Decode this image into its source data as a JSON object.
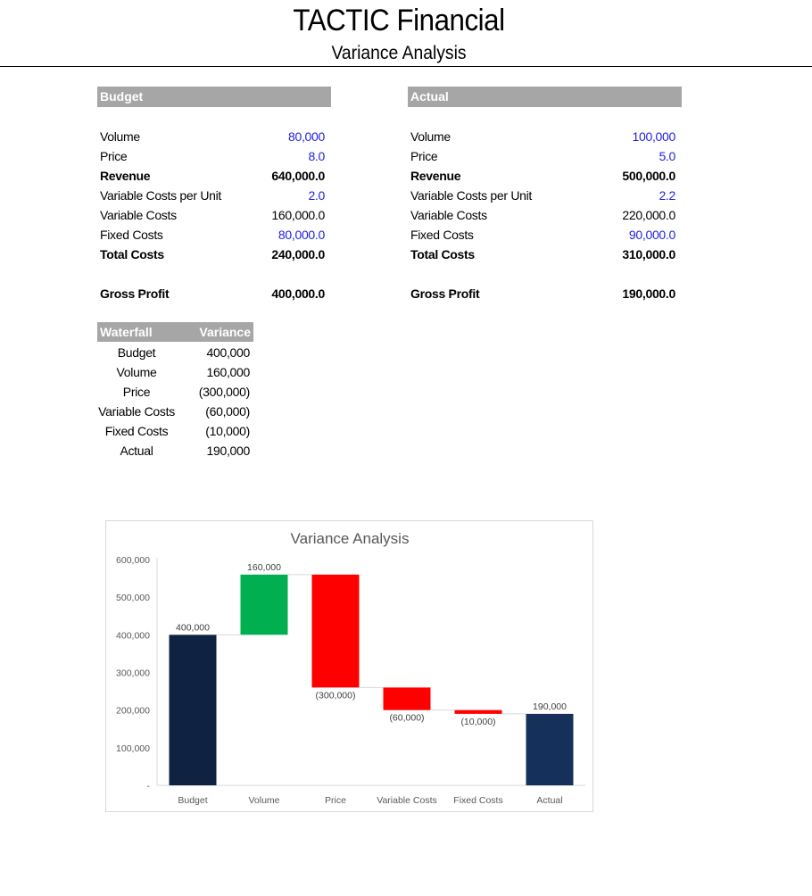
{
  "header": {
    "title": "TACTIC Financial",
    "subtitle": "Variance Analysis"
  },
  "budget": {
    "heading": "Budget",
    "rows": [
      {
        "label": "Volume",
        "value": "80,000",
        "style": "input"
      },
      {
        "label": "Price",
        "value": "8.0",
        "style": "input"
      },
      {
        "label": "Revenue",
        "value": "640,000.0",
        "style": "bold"
      },
      {
        "label": "Variable Costs per Unit",
        "value": "2.0",
        "style": "input"
      },
      {
        "label": "Variable Costs",
        "value": "160,000.0",
        "style": "normal"
      },
      {
        "label": "Fixed Costs",
        "value": "80,000.0",
        "style": "input"
      },
      {
        "label": "Total Costs",
        "value": "240,000.0",
        "style": "bold"
      }
    ],
    "gross_profit": {
      "label": "Gross Profit",
      "value": "400,000.0"
    }
  },
  "actual": {
    "heading": "Actual",
    "rows": [
      {
        "label": "Volume",
        "value": "100,000",
        "style": "input"
      },
      {
        "label": "Price",
        "value": "5.0",
        "style": "input"
      },
      {
        "label": "Revenue",
        "value": "500,000.0",
        "style": "bold"
      },
      {
        "label": "Variable Costs per Unit",
        "value": "2.2",
        "style": "input"
      },
      {
        "label": "Variable Costs",
        "value": "220,000.0",
        "style": "normal"
      },
      {
        "label": "Fixed Costs",
        "value": "90,000.0",
        "style": "input"
      },
      {
        "label": "Total Costs",
        "value": "310,000.0",
        "style": "bold"
      }
    ],
    "gross_profit": {
      "label": "Gross Profit",
      "value": "190,000.0"
    }
  },
  "waterfall_table": {
    "col1": "Waterfall",
    "col2": "Variance",
    "rows": [
      {
        "label": "Budget",
        "value": "400,000"
      },
      {
        "label": "Volume",
        "value": "160,000"
      },
      {
        "label": "Price",
        "value": "(300,000)"
      },
      {
        "label": "Variable Costs",
        "value": "(60,000)"
      },
      {
        "label": "Fixed Costs",
        "value": "(10,000)"
      },
      {
        "label": "Actual",
        "value": "190,000"
      }
    ]
  },
  "colors": {
    "input_blue": "#1f1fe0",
    "header_gray": "#a6a6a6",
    "budget_bar": "#0f2241",
    "actual_bar": "#15305a",
    "increase": "#00b050",
    "decrease": "#ff0000"
  },
  "chart_data": {
    "type": "bar",
    "subtype": "waterfall",
    "title": "Variance Analysis",
    "xlabel": "",
    "ylabel": "",
    "ylim": [
      0,
      600000
    ],
    "y_ticks": [
      0,
      100000,
      200000,
      300000,
      400000,
      500000,
      600000
    ],
    "y_tick_labels": [
      "-",
      "100,000",
      "200,000",
      "300,000",
      "400,000",
      "500,000",
      "600,000"
    ],
    "categories": [
      "Budget",
      "Volume",
      "Price",
      "Variable Costs",
      "Fixed Costs",
      "Actual"
    ],
    "values": [
      400000,
      160000,
      -300000,
      -60000,
      -10000,
      190000
    ],
    "kinds": [
      "total",
      "delta",
      "delta",
      "delta",
      "delta",
      "total"
    ],
    "data_labels": [
      "400,000",
      "160,000",
      "(300,000)",
      "(60,000)",
      "(10,000)",
      "190,000"
    ],
    "grid": false,
    "legend": "none"
  }
}
